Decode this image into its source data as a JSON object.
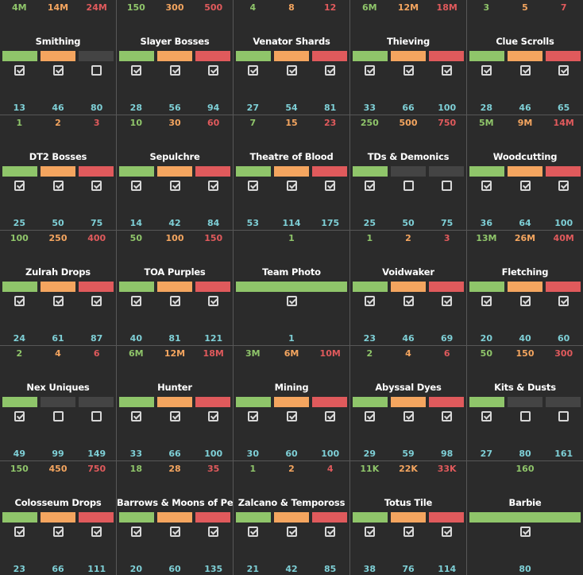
{
  "colors": {
    "green": "#8fc56a",
    "orange": "#f4a55f",
    "red": "#e05a5c",
    "gray": "#444444",
    "target": "#7ecfd6",
    "background": "#2b2b2b",
    "divider": "#575757"
  },
  "tiles": [
    {
      "name": "Smithing",
      "values": [
        "4M",
        "14M",
        "24M"
      ],
      "targets": [
        "13",
        "46",
        "80"
      ],
      "bars": [
        "green",
        "orange",
        "gray"
      ],
      "checks": [
        true,
        true,
        false
      ]
    },
    {
      "name": "Slayer Bosses",
      "values": [
        "150",
        "300",
        "500"
      ],
      "targets": [
        "28",
        "56",
        "94"
      ],
      "bars": [
        "green",
        "orange",
        "red"
      ],
      "checks": [
        true,
        true,
        true
      ]
    },
    {
      "name": "Venator Shards",
      "values": [
        "4",
        "8",
        "12"
      ],
      "targets": [
        "27",
        "54",
        "81"
      ],
      "bars": [
        "green",
        "orange",
        "red"
      ],
      "checks": [
        true,
        true,
        true
      ]
    },
    {
      "name": "Thieving",
      "values": [
        "6M",
        "12M",
        "18M"
      ],
      "targets": [
        "33",
        "66",
        "100"
      ],
      "bars": [
        "green",
        "orange",
        "red"
      ],
      "checks": [
        true,
        true,
        true
      ]
    },
    {
      "name": "Clue Scrolls",
      "values": [
        "3",
        "5",
        "7"
      ],
      "targets": [
        "28",
        "46",
        "65"
      ],
      "bars": [
        "green",
        "orange",
        "red"
      ],
      "checks": [
        true,
        true,
        true
      ]
    },
    {
      "name": "DT2 Bosses",
      "values": [
        "1",
        "2",
        "3"
      ],
      "targets": [
        "25",
        "50",
        "75"
      ],
      "bars": [
        "green",
        "orange",
        "red"
      ],
      "checks": [
        true,
        true,
        true
      ]
    },
    {
      "name": "Sepulchre",
      "values": [
        "10",
        "30",
        "60"
      ],
      "targets": [
        "14",
        "42",
        "84"
      ],
      "bars": [
        "green",
        "orange",
        "red"
      ],
      "checks": [
        true,
        true,
        true
      ]
    },
    {
      "name": "Theatre of Blood",
      "values": [
        "7",
        "15",
        "23"
      ],
      "targets": [
        "53",
        "114",
        "175"
      ],
      "bars": [
        "green",
        "orange",
        "red"
      ],
      "checks": [
        true,
        true,
        true
      ]
    },
    {
      "name": "TDs & Demonics",
      "values": [
        "250",
        "500",
        "750"
      ],
      "targets": [
        "25",
        "50",
        "75"
      ],
      "bars": [
        "green",
        "gray",
        "gray"
      ],
      "checks": [
        true,
        false,
        false
      ]
    },
    {
      "name": "Woodcutting",
      "values": [
        "5M",
        "9M",
        "14M"
      ],
      "targets": [
        "36",
        "64",
        "100"
      ],
      "bars": [
        "green",
        "orange",
        "red"
      ],
      "checks": [
        true,
        true,
        true
      ]
    },
    {
      "name": "Zulrah Drops",
      "values": [
        "100",
        "250",
        "400"
      ],
      "targets": [
        "24",
        "61",
        "87"
      ],
      "bars": [
        "green",
        "orange",
        "red"
      ],
      "checks": [
        true,
        true,
        true
      ]
    },
    {
      "name": "TOA Purples",
      "values": [
        "50",
        "100",
        "150"
      ],
      "targets": [
        "40",
        "81",
        "121"
      ],
      "bars": [
        "green",
        "orange",
        "red"
      ],
      "checks": [
        true,
        true,
        true
      ]
    },
    {
      "name": "Team Photo",
      "values": [
        "1"
      ],
      "targets": [
        "1"
      ],
      "bars": [
        "green"
      ],
      "checks": [
        true
      ]
    },
    {
      "name": "Voidwaker",
      "values": [
        "1",
        "2",
        "3"
      ],
      "targets": [
        "23",
        "46",
        "69"
      ],
      "bars": [
        "green",
        "orange",
        "red"
      ],
      "checks": [
        true,
        true,
        true
      ]
    },
    {
      "name": "Fletching",
      "values": [
        "13M",
        "26M",
        "40M"
      ],
      "targets": [
        "20",
        "40",
        "60"
      ],
      "bars": [
        "green",
        "orange",
        "red"
      ],
      "checks": [
        true,
        true,
        true
      ]
    },
    {
      "name": "Nex Uniques",
      "values": [
        "2",
        "4",
        "6"
      ],
      "targets": [
        "49",
        "99",
        "149"
      ],
      "bars": [
        "green",
        "gray",
        "gray"
      ],
      "checks": [
        true,
        false,
        false
      ]
    },
    {
      "name": "Hunter",
      "values": [
        "6M",
        "12M",
        "18M"
      ],
      "targets": [
        "33",
        "66",
        "100"
      ],
      "bars": [
        "green",
        "orange",
        "red"
      ],
      "checks": [
        true,
        true,
        true
      ]
    },
    {
      "name": "Mining",
      "values": [
        "3M",
        "6M",
        "10M"
      ],
      "targets": [
        "30",
        "60",
        "100"
      ],
      "bars": [
        "green",
        "orange",
        "red"
      ],
      "checks": [
        true,
        true,
        true
      ]
    },
    {
      "name": "Abyssal Dyes",
      "values": [
        "2",
        "4",
        "6"
      ],
      "targets": [
        "29",
        "59",
        "98"
      ],
      "bars": [
        "green",
        "orange",
        "red"
      ],
      "checks": [
        true,
        true,
        true
      ]
    },
    {
      "name": "Kits & Dusts",
      "values": [
        "50",
        "150",
        "300"
      ],
      "targets": [
        "27",
        "80",
        "161"
      ],
      "bars": [
        "green",
        "gray",
        "gray"
      ],
      "checks": [
        true,
        false,
        false
      ]
    },
    {
      "name": "Colosseum Drops",
      "values": [
        "150",
        "450",
        "750"
      ],
      "targets": [
        "23",
        "66",
        "111"
      ],
      "bars": [
        "green",
        "orange",
        "red"
      ],
      "checks": [
        true,
        true,
        true
      ]
    },
    {
      "name": "Barrows & Moons of Peril",
      "values": [
        "18",
        "28",
        "35"
      ],
      "targets": [
        "20",
        "60",
        "135"
      ],
      "bars": [
        "green",
        "orange",
        "red"
      ],
      "checks": [
        true,
        true,
        true
      ]
    },
    {
      "name": "Zalcano & Tempoross",
      "values": [
        "1",
        "2",
        "4"
      ],
      "targets": [
        "21",
        "42",
        "85"
      ],
      "bars": [
        "green",
        "orange",
        "red"
      ],
      "checks": [
        true,
        true,
        true
      ]
    },
    {
      "name": "Totus Tile",
      "values": [
        "11K",
        "22K",
        "33K"
      ],
      "targets": [
        "38",
        "76",
        "114"
      ],
      "bars": [
        "green",
        "orange",
        "red"
      ],
      "checks": [
        true,
        true,
        true
      ]
    },
    {
      "name": "Barbie",
      "values": [
        "160"
      ],
      "targets": [
        "80"
      ],
      "bars": [
        "green"
      ],
      "checks": [
        true
      ]
    }
  ]
}
